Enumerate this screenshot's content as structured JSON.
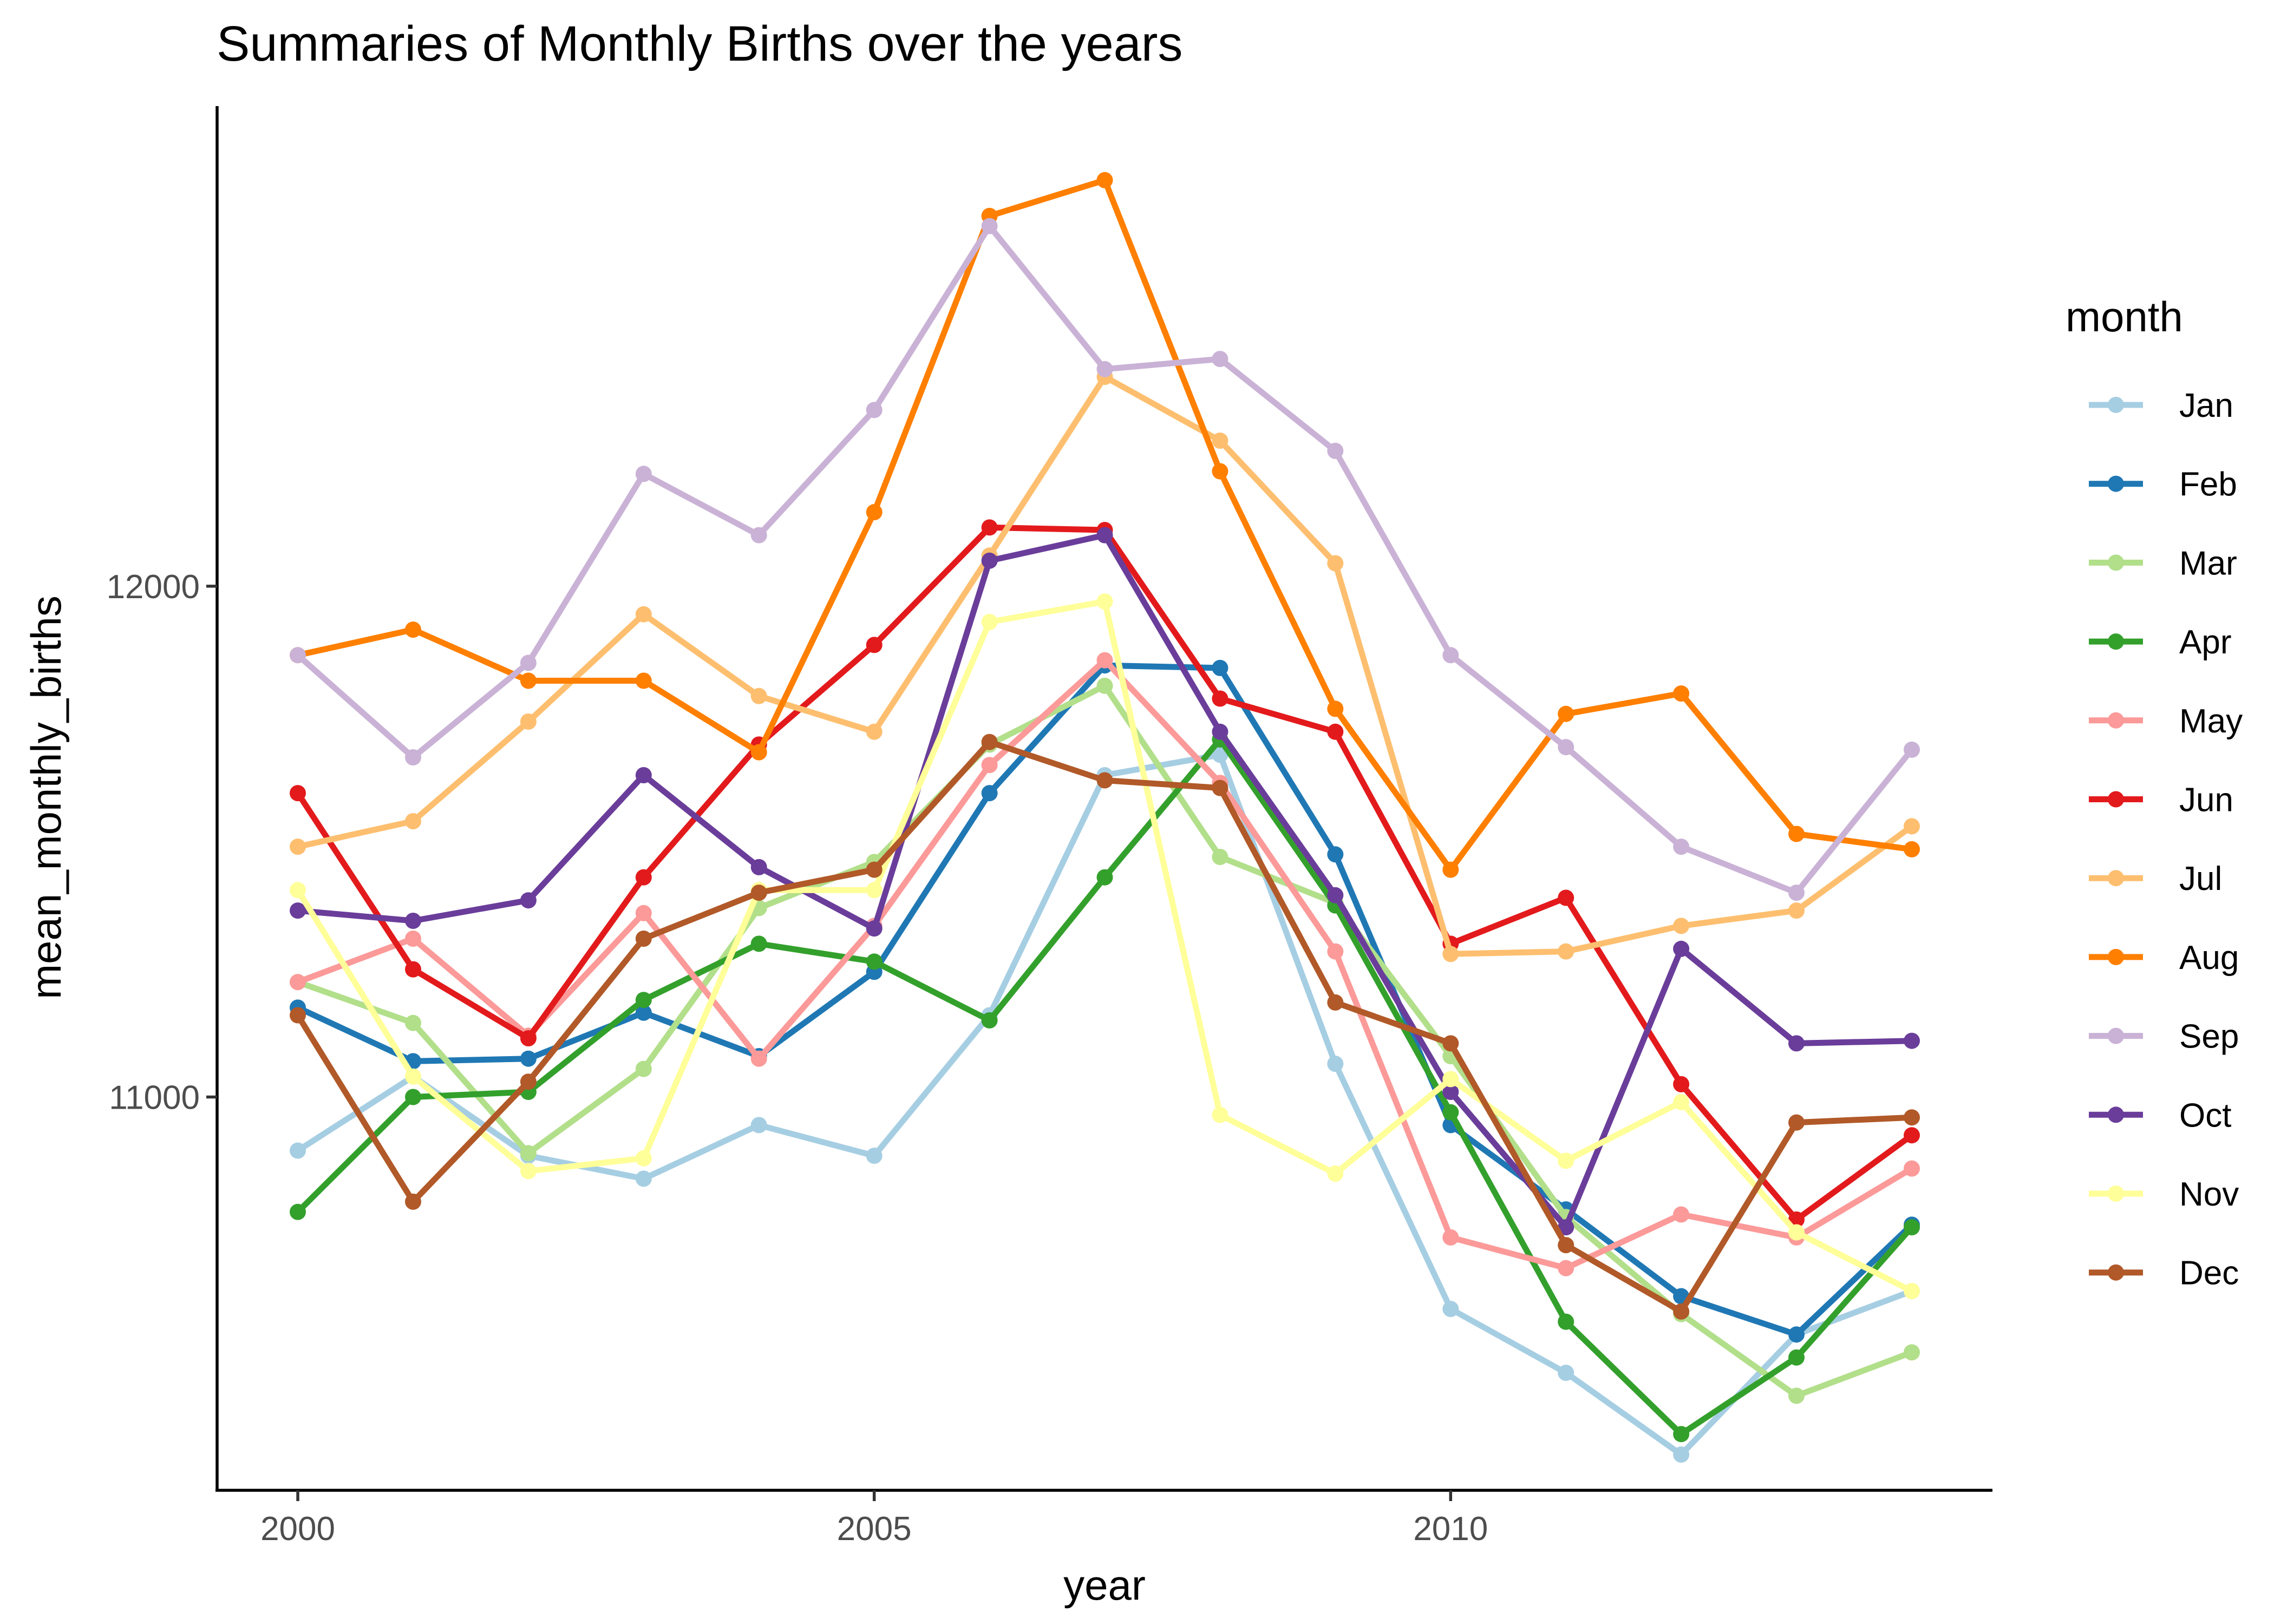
{
  "chart_data": {
    "type": "line",
    "title": "Summaries of Monthly Births over the years",
    "xlabel": "year",
    "ylabel": "mean_monthly_births",
    "x": [
      2000,
      2001,
      2002,
      2003,
      2004,
      2005,
      2006,
      2007,
      2008,
      2009,
      2010,
      2011,
      2012,
      2013,
      2014
    ],
    "xlim": [
      1999.3,
      2014.7
    ],
    "ylim": [
      10230,
      12940
    ],
    "xticks": [
      {
        "value": 2000,
        "label": "2000"
      },
      {
        "value": 2005,
        "label": "2005"
      },
      {
        "value": 2010,
        "label": "2010"
      }
    ],
    "yticks": [
      {
        "value": 11000,
        "label": "11000"
      },
      {
        "value": 12000,
        "label": "12000"
      }
    ],
    "grid": false,
    "legend_title": "month",
    "legend_position": "right",
    "series": [
      {
        "name": "Jan",
        "color": "#A6CEE3",
        "values": [
          10895,
          11040,
          10885,
          10840,
          10945,
          10885,
          11160,
          11630,
          11670,
          11065,
          10585,
          10460,
          10300,
          10535,
          10620
        ]
      },
      {
        "name": "Feb",
        "color": "#1F78B4",
        "values": [
          11175,
          11070,
          11075,
          11165,
          11080,
          11245,
          11595,
          11845,
          11840,
          11475,
          10945,
          10780,
          10610,
          10535,
          10750
        ]
      },
      {
        "name": "Mar",
        "color": "#B2DF8A",
        "values": [
          11225,
          11145,
          10890,
          11055,
          11370,
          11460,
          11690,
          11805,
          11470,
          11380,
          11080,
          10765,
          10575,
          10415,
          10500
        ]
      },
      {
        "name": "Apr",
        "color": "#33A02C",
        "values": [
          10775,
          11000,
          11010,
          11190,
          11300,
          11265,
          11150,
          11430,
          11700,
          11375,
          10970,
          10560,
          10340,
          10490,
          10745
        ]
      },
      {
        "name": "May",
        "color": "#FB9A99",
        "values": [
          11225,
          11310,
          11120,
          11360,
          11075,
          11335,
          11650,
          11855,
          11615,
          11285,
          10725,
          10665,
          10770,
          10725,
          10860
        ]
      },
      {
        "name": "Jun",
        "color": "#E31A1C",
        "values": [
          11595,
          11250,
          11115,
          11430,
          11690,
          11885,
          12115,
          12110,
          11780,
          11715,
          11300,
          11390,
          11025,
          10760,
          10925
        ]
      },
      {
        "name": "Jul",
        "color": "#FDBF6F",
        "values": [
          11490,
          11540,
          11735,
          11945,
          11785,
          11715,
          12060,
          12410,
          12285,
          12045,
          11280,
          11285,
          11335,
          11365,
          11530
        ]
      },
      {
        "name": "Aug",
        "color": "#FF7F00",
        "values": [
          11865,
          11915,
          11815,
          11815,
          11675,
          12145,
          12725,
          12795,
          12225,
          11760,
          11445,
          11750,
          11790,
          11515,
          11485
        ]
      },
      {
        "name": "Sep",
        "color": "#CAB2D6",
        "values": [
          11865,
          11665,
          11850,
          12220,
          12100,
          12345,
          12705,
          12425,
          12445,
          12265,
          11865,
          11685,
          11490,
          11400,
          11680
        ]
      },
      {
        "name": "Oct",
        "color": "#6A3D9A",
        "values": [
          11365,
          11345,
          11385,
          11630,
          11450,
          11330,
          12050,
          12100,
          11715,
          11395,
          11010,
          10745,
          11290,
          11105,
          11110
        ]
      },
      {
        "name": "Nov",
        "color": "#FFFF99",
        "values": [
          11405,
          11040,
          10855,
          10880,
          11405,
          11405,
          11930,
          11970,
          10965,
          10850,
          11035,
          10875,
          10990,
          10735,
          10620
        ]
      },
      {
        "name": "Dec",
        "color": "#B15928",
        "values": [
          11160,
          10795,
          11030,
          11310,
          11400,
          11445,
          11695,
          11620,
          11605,
          11185,
          11105,
          10710,
          10580,
          10950,
          10960
        ]
      }
    ]
  }
}
